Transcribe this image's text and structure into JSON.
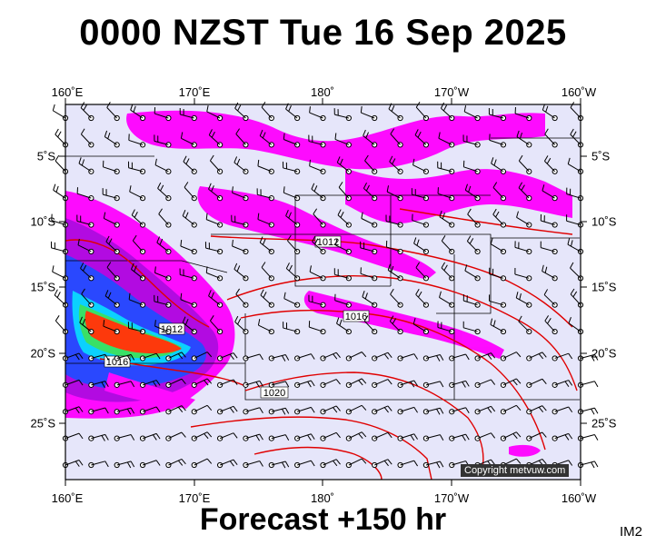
{
  "title": "0000 NZST Tue 16 Sep 2025",
  "footer": "Forecast +150 hr",
  "tag": "IM2",
  "copyright": "Copyright metvuw.com",
  "lon_labels": [
    "160˚E",
    "170˚E",
    "180˚",
    "170˚W",
    "160˚W"
  ],
  "lat_labels": [
    "5˚S",
    "10˚S",
    "15˚S",
    "20˚S",
    "25˚S"
  ],
  "isobar_labels": [
    "1012",
    "1016",
    "1012",
    "1016",
    "1020"
  ],
  "colors": {
    "ocean": "#e6e6fa",
    "frame": "#000000",
    "isobar": "#e00000",
    "rain_light": "#ff00ff",
    "rain_mid": "#b000e0",
    "rain_blue": "#2040ff",
    "rain_cyan": "#00d0ff",
    "rain_green": "#30e060",
    "rain_red": "#ff3000"
  }
}
